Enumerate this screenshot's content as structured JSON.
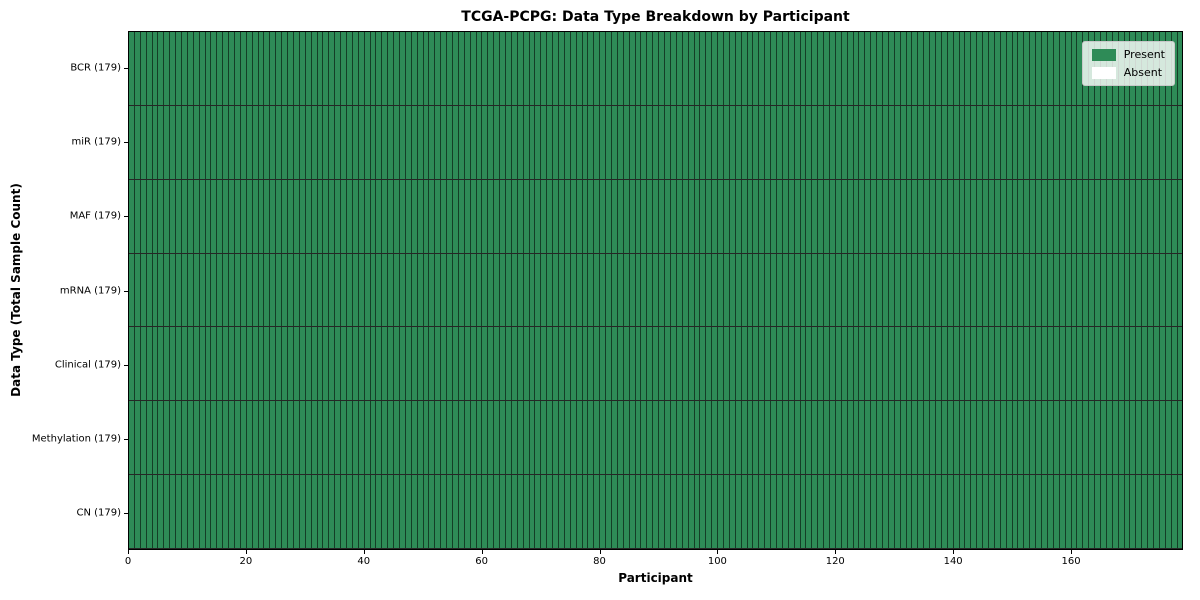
{
  "chart_data": {
    "type": "heatmap",
    "title": "TCGA-PCPG: Data Type Breakdown by Participant",
    "xlabel": "Participant",
    "ylabel": "Data Type (Total Sample Count)",
    "n_participants": 179,
    "x_range": [
      0,
      179
    ],
    "x_ticks": [
      0,
      20,
      40,
      60,
      80,
      100,
      120,
      140,
      160
    ],
    "rows": [
      {
        "label": "BCR (179)",
        "total_samples": 179,
        "present_count": 179,
        "absent_count": 0
      },
      {
        "label": "miR (179)",
        "total_samples": 179,
        "present_count": 179,
        "absent_count": 0
      },
      {
        "label": "MAF (179)",
        "total_samples": 179,
        "present_count": 179,
        "absent_count": 0
      },
      {
        "label": "mRNA (179)",
        "total_samples": 179,
        "present_count": 179,
        "absent_count": 0
      },
      {
        "label": "Clinical (179)",
        "total_samples": 179,
        "present_count": 179,
        "absent_count": 0
      },
      {
        "label": "Methylation (179)",
        "total_samples": 179,
        "present_count": 179,
        "absent_count": 0
      },
      {
        "label": "CN (179)",
        "total_samples": 179,
        "present_count": 179,
        "absent_count": 0
      }
    ],
    "all_cells_value": "Present",
    "legend_items": [
      {
        "label": "Present",
        "color": "#2e8b57"
      },
      {
        "label": "Absent",
        "color": "#ffffff"
      }
    ],
    "legend_position": "upper right",
    "grid": true,
    "colors": {
      "present": "#2e8b57",
      "absent": "#ffffff",
      "cell_edge": "#000000",
      "background": "#ffffff"
    }
  }
}
